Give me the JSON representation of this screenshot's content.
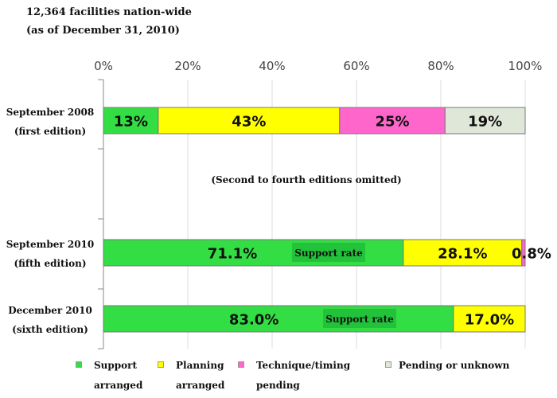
{
  "header": {
    "facilities_line": "12,364 facilities nation-wide",
    "asof_line": "(as of December 31, 2010)"
  },
  "chart_data": {
    "type": "bar",
    "orientation": "horizontal",
    "stacked": true,
    "x_ticks": [
      "0%",
      "20%",
      "40%",
      "60%",
      "80%",
      "100%"
    ],
    "xlim": [
      0,
      100
    ],
    "rows": [
      {
        "label": "September 2008",
        "sublabel": "(first edition)",
        "segments": [
          {
            "category": "Support arranged",
            "value": 13,
            "label": "13%"
          },
          {
            "category": "Planning arranged",
            "value": 43,
            "label": "43%"
          },
          {
            "category": "Technique/timing pending",
            "value": 25,
            "label": "25%"
          },
          {
            "category": "Pending or unknown",
            "value": 19,
            "label": "19%"
          }
        ]
      },
      {
        "label": "September 2010",
        "sublabel": "(fifth edition)",
        "segments": [
          {
            "category": "Support arranged",
            "value": 71.1,
            "label": "71.1%"
          },
          {
            "category": "Planning arranged",
            "value": 28.1,
            "label": "28.1%"
          },
          {
            "category": "Technique/timing pending",
            "value": 0.8,
            "label": "0.8%"
          }
        ],
        "annotation": "Support rate"
      },
      {
        "label": "December 2010",
        "sublabel": "(sixth edition)",
        "segments": [
          {
            "category": "Support arranged",
            "value": 83.0,
            "label": "83.0%"
          },
          {
            "category": "Planning arranged",
            "value": 17.0,
            "label": "17.0%"
          }
        ],
        "annotation": "Support rate"
      }
    ],
    "omitted_note": "(Second to fourth editions omitted)",
    "legend": [
      {
        "label_line1": "Support",
        "label_line2": "arranged",
        "color": "#33dd44"
      },
      {
        "label_line1": "Planning",
        "label_line2": "arranged",
        "color": "#ffff00"
      },
      {
        "label_line1": "Technique/timing",
        "label_line2": "pending",
        "color": "#ff66cc"
      },
      {
        "label_line1": "Pending or unknown",
        "label_line2": "",
        "color": "#dfe8d8"
      }
    ],
    "colors": {
      "Support arranged": "#33dd44",
      "Planning arranged": "#ffff00",
      "Technique/timing pending": "#ff66cc",
      "Pending or unknown": "#dfe8d8",
      "annotation_bg": "#22c33a"
    }
  }
}
